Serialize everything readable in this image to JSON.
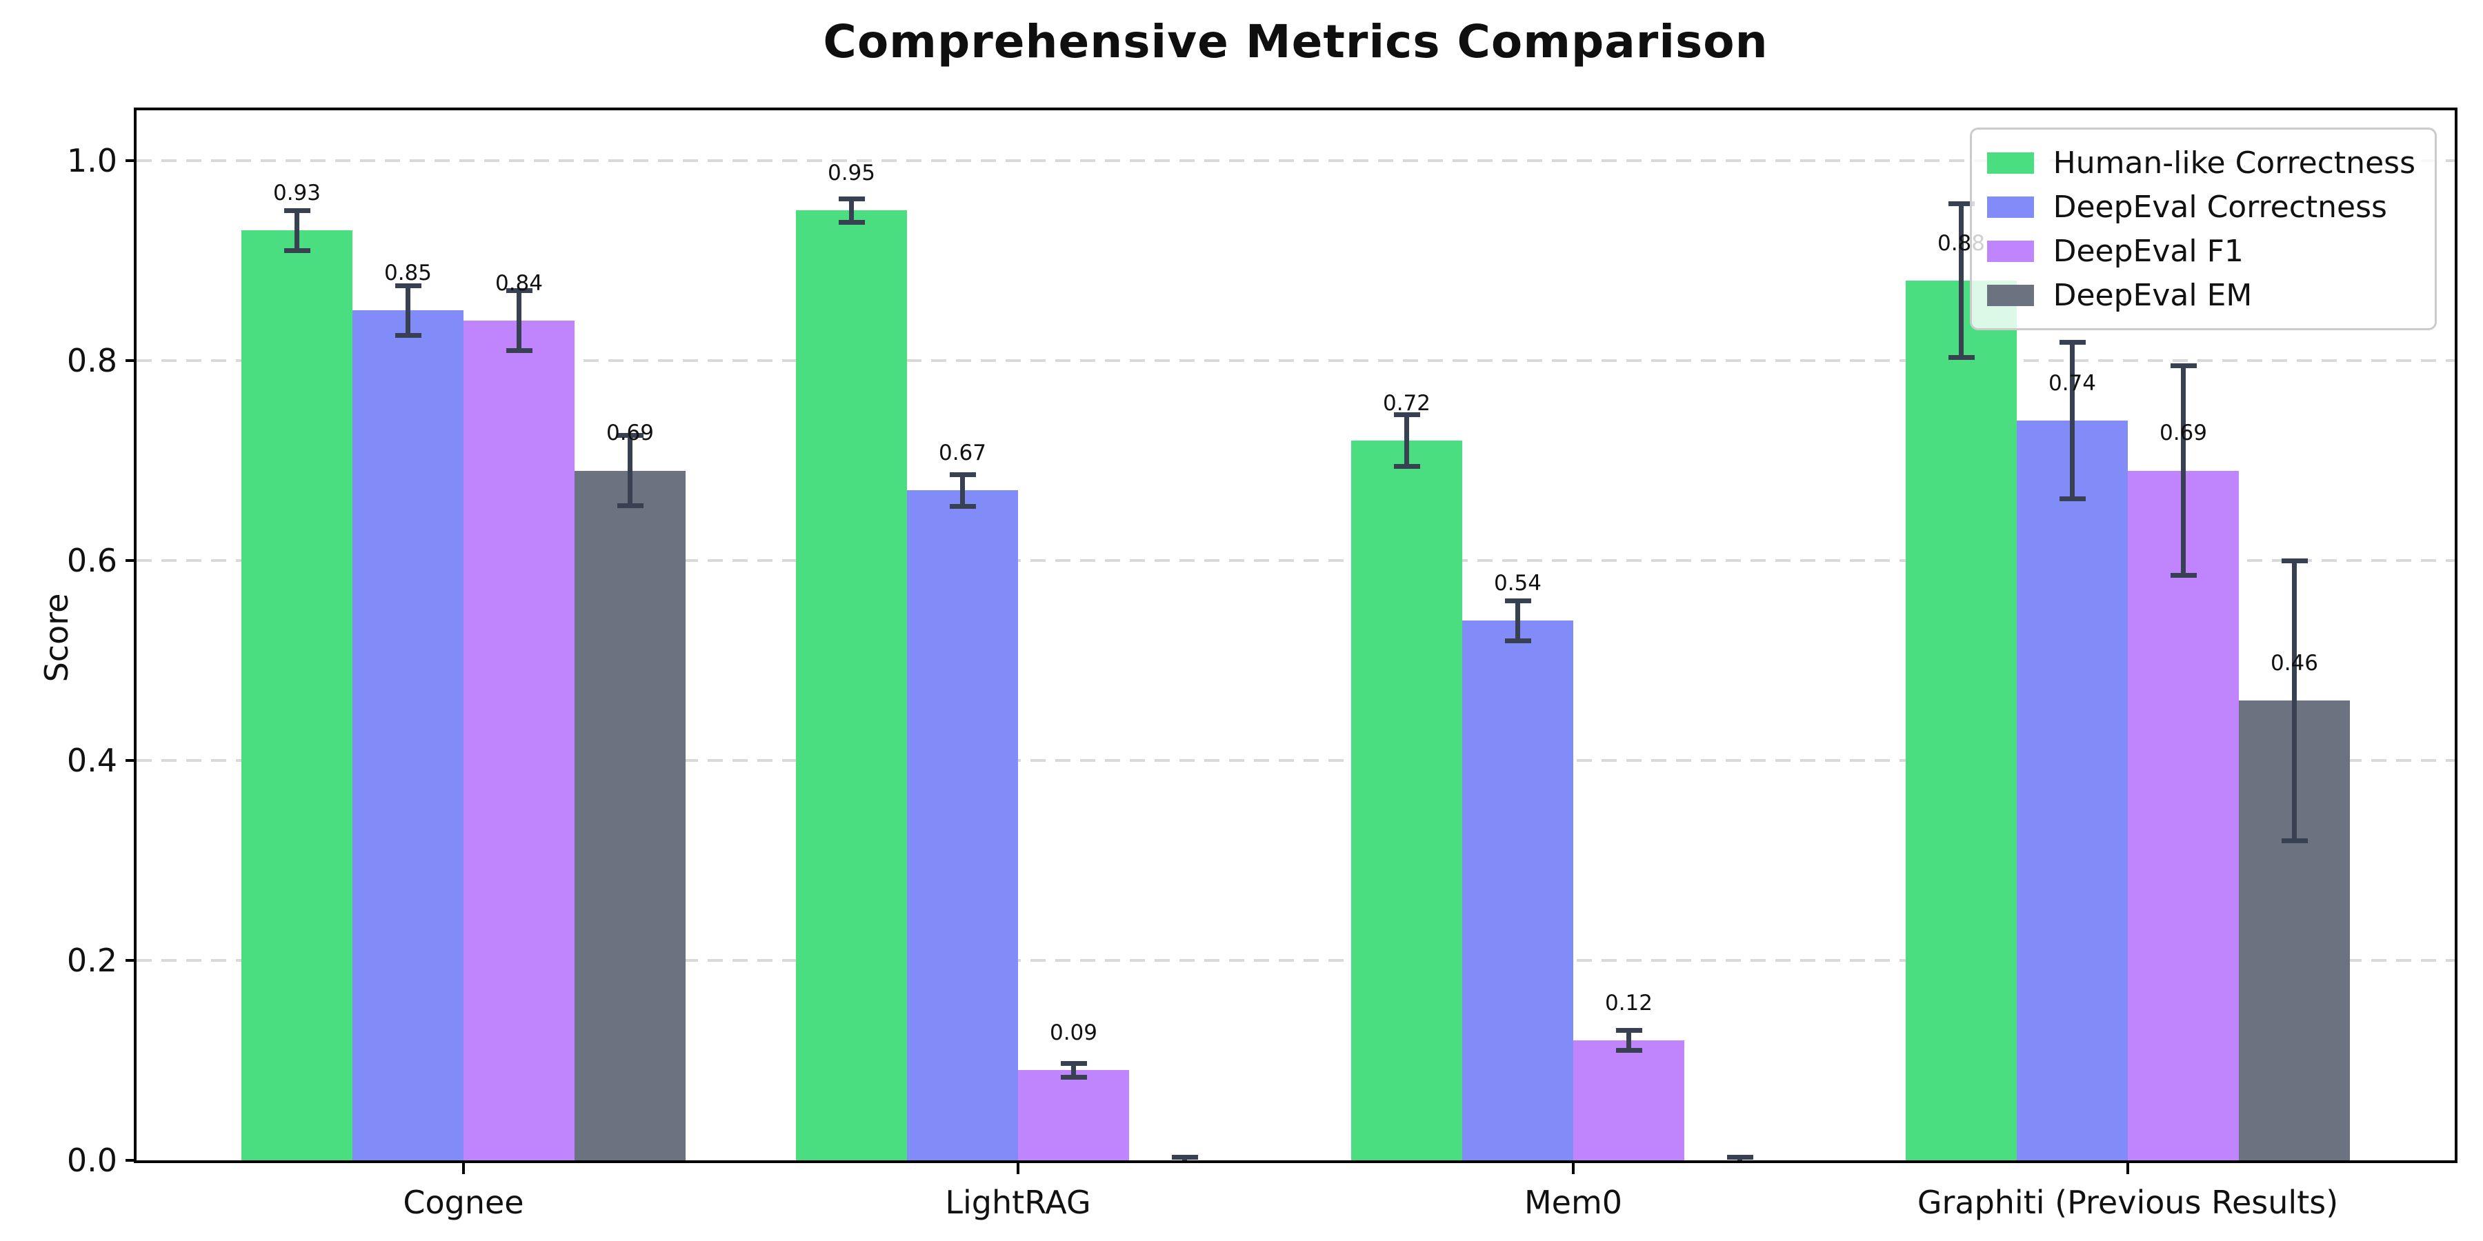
{
  "title": "Comprehensive Metrics Comparison",
  "ylabel": "Score",
  "chart_data": {
    "type": "bar",
    "title": "Comprehensive Metrics Comparison",
    "xlabel": "",
    "ylabel": "Score",
    "categories": [
      "Cognee",
      "LightRAG",
      "Mem0",
      "Graphiti (Previous Results)"
    ],
    "series": [
      {
        "name": "Human-like Correctness",
        "color": "#4ade80",
        "values": [
          0.93,
          0.95,
          0.72,
          0.88
        ],
        "errors": [
          0.02,
          0.012,
          0.026,
          0.077
        ],
        "labels": [
          "0.93",
          "0.95",
          "0.72",
          "0.88"
        ]
      },
      {
        "name": "DeepEval Correctness",
        "color": "#818cf8",
        "values": [
          0.85,
          0.67,
          0.54,
          0.74
        ],
        "errors": [
          0.025,
          0.016,
          0.02,
          0.078
        ],
        "labels": [
          "0.85",
          "0.67",
          "0.54",
          "0.74"
        ]
      },
      {
        "name": "DeepEval F1",
        "color": "#c084fc",
        "values": [
          0.84,
          0.09,
          0.12,
          0.69
        ],
        "errors": [
          0.03,
          0.007,
          0.01,
          0.105
        ],
        "labels": [
          "0.84",
          "0.09",
          "0.12",
          "0.69"
        ]
      },
      {
        "name": "DeepEval EM",
        "color": "#6b7280",
        "values": [
          0.69,
          0.0,
          0.0,
          0.46
        ],
        "errors": [
          0.035,
          0.003,
          0.003,
          0.14
        ],
        "labels": [
          "0.69",
          null,
          null,
          "0.46"
        ]
      }
    ],
    "yticks": [
      "0.0",
      "0.2",
      "0.4",
      "0.6",
      "0.8",
      "1.0"
    ],
    "ylim": [
      0,
      1.05
    ],
    "grid": "dashed horizontal",
    "legend_position": "upper right",
    "error_bar_color": "#374151"
  }
}
